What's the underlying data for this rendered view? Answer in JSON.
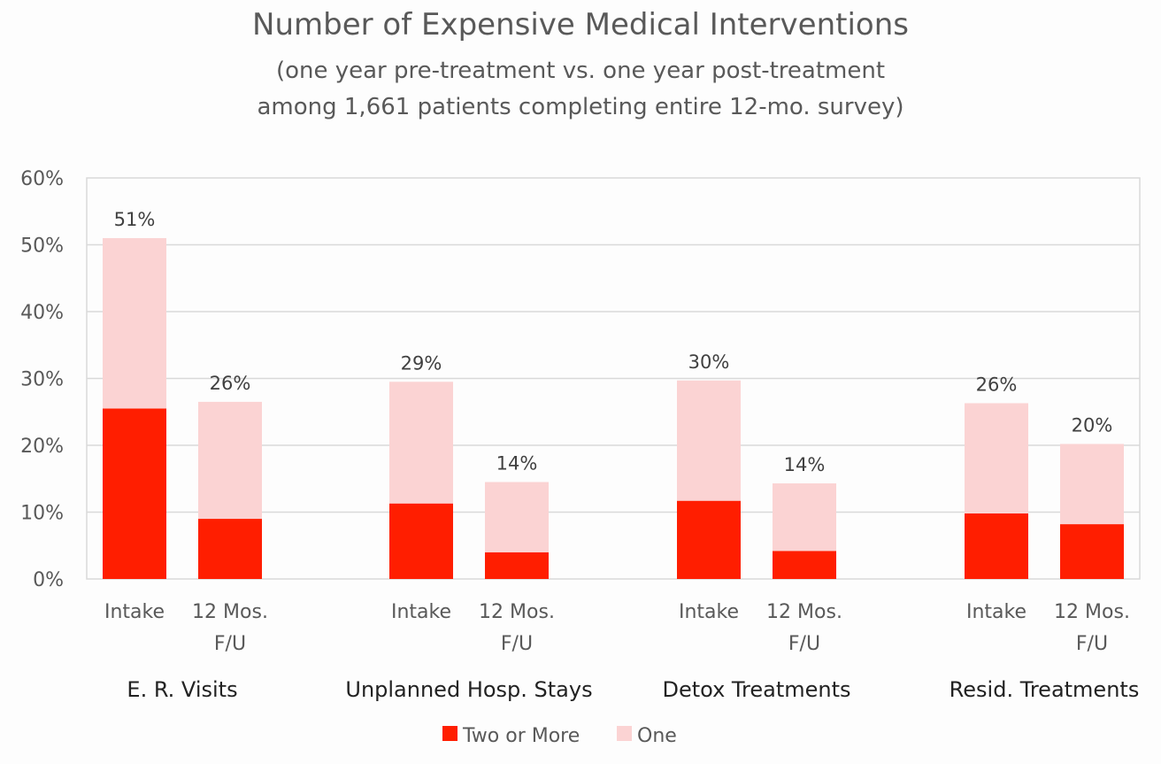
{
  "chart_data": {
    "type": "bar",
    "stacked": true,
    "title": "Number of Expensive Medical Interventions",
    "subtitle_lines": [
      "(one year pre-treatment vs. one year post-treatment",
      "among 1,661 patients completing entire 12-mo. survey)"
    ],
    "ylim": [
      0,
      60
    ],
    "y_ticks": [
      "0%",
      "10%",
      "20%",
      "30%",
      "40%",
      "50%",
      "60%"
    ],
    "grid": true,
    "legend_position": "bottom",
    "groups": [
      {
        "label": "E. R. Visits",
        "bars": [
          {
            "category": [
              "Intake"
            ],
            "two_or_more": 25.5,
            "one": 25.5,
            "total_label": "51%"
          },
          {
            "category": [
              "12 Mos.",
              "F/U"
            ],
            "two_or_more": 9,
            "one": 17.5,
            "total_label": "26%"
          }
        ]
      },
      {
        "label": "Unplanned Hosp. Stays",
        "bars": [
          {
            "category": [
              "Intake"
            ],
            "two_or_more": 11.3,
            "one": 18.2,
            "total_label": "29%"
          },
          {
            "category": [
              "12 Mos.",
              "F/U"
            ],
            "two_or_more": 4,
            "one": 10.5,
            "total_label": "14%"
          }
        ]
      },
      {
        "label": "Detox Treatments",
        "bars": [
          {
            "category": [
              "Intake"
            ],
            "two_or_more": 11.7,
            "one": 18,
            "total_label": "30%"
          },
          {
            "category": [
              "12 Mos.",
              "F/U"
            ],
            "two_or_more": 4.2,
            "one": 10.1,
            "total_label": "14%"
          }
        ]
      },
      {
        "label": "Resid.  Treatments",
        "bars": [
          {
            "category": [
              "Intake"
            ],
            "two_or_more": 9.8,
            "one": 16.5,
            "total_label": "26%"
          },
          {
            "category": [
              "12 Mos.",
              "F/U"
            ],
            "two_or_more": 8.2,
            "one": 12,
            "total_label": "20%"
          }
        ]
      }
    ],
    "series": [
      {
        "key": "two_or_more",
        "name": "Two or More",
        "color": "#ff1e00"
      },
      {
        "key": "one",
        "name": "One",
        "color": "#fbd3d3"
      }
    ],
    "colors": {
      "grid": "#d9d9d9",
      "plot_border": "#d9d9d9"
    }
  }
}
